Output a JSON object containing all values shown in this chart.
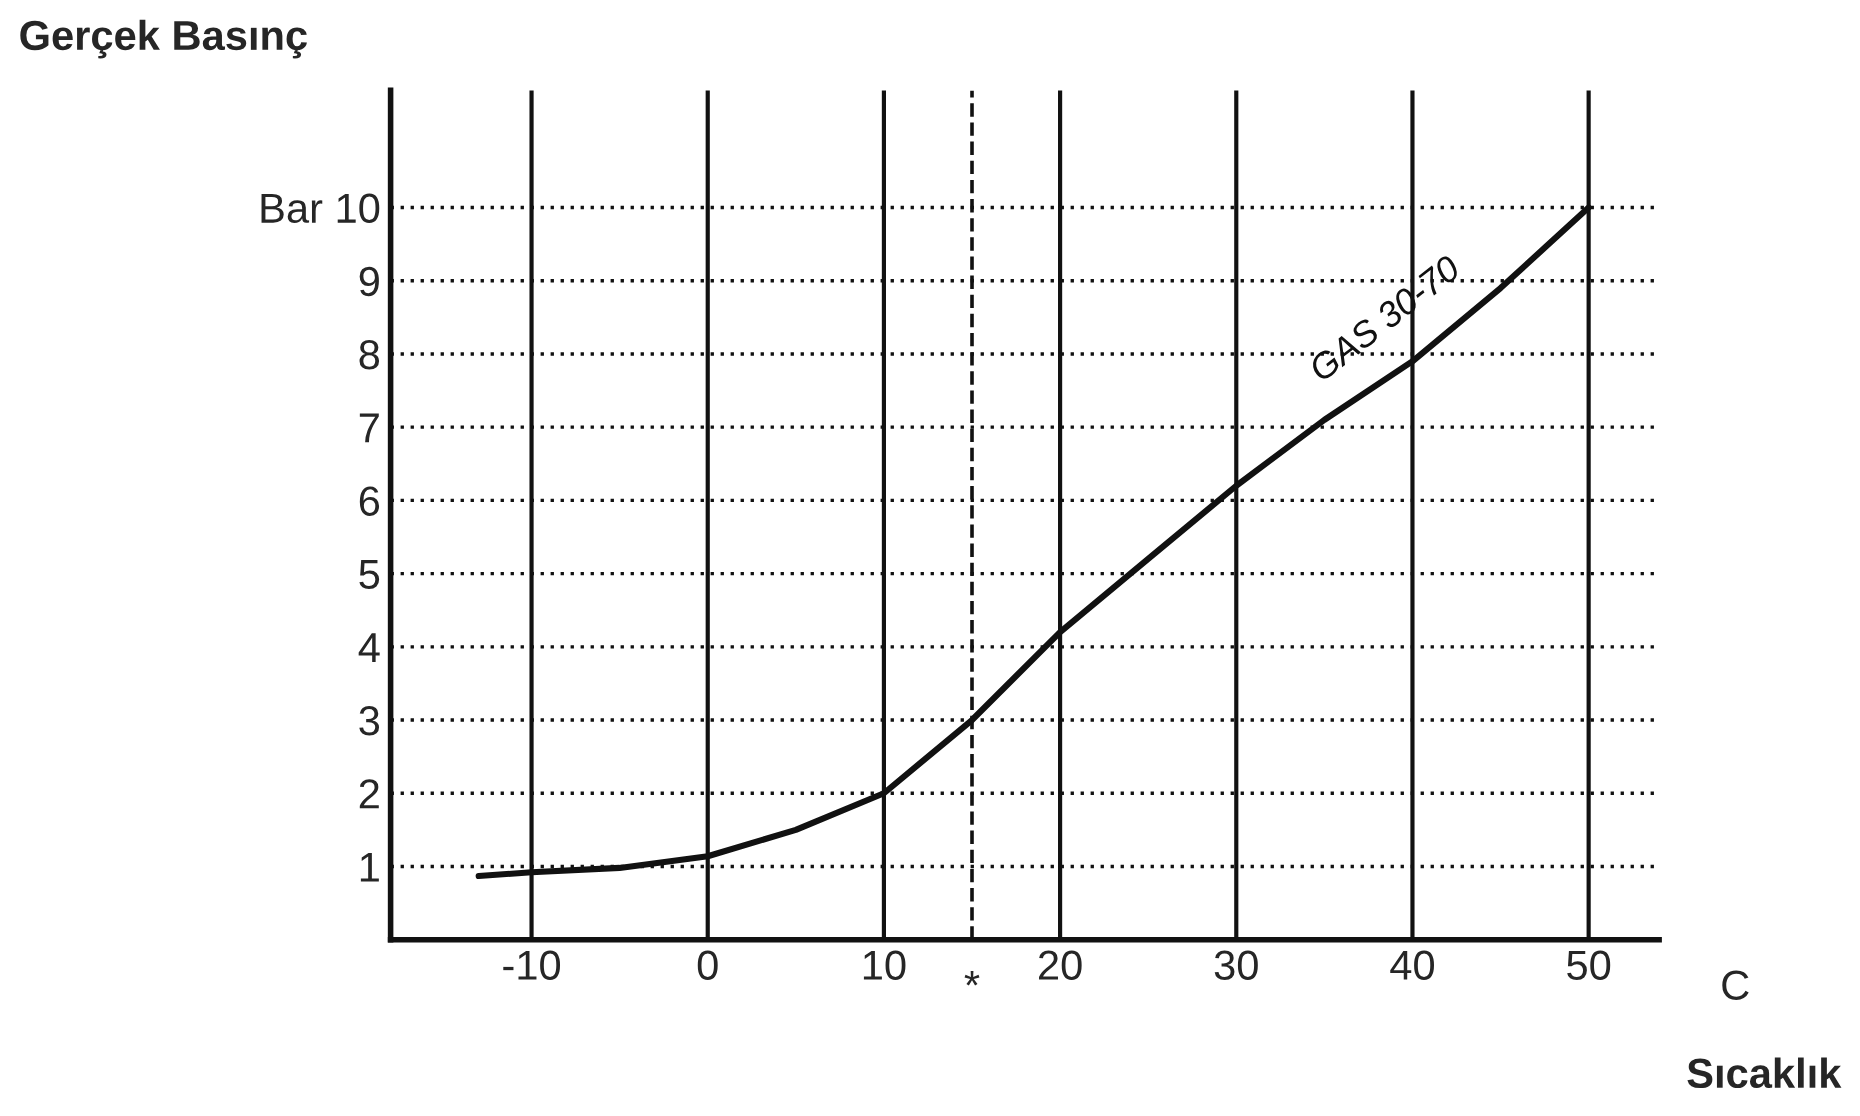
{
  "chart_data": {
    "type": "line",
    "xlabel": "Sıcaklık",
    "ylabel": "Gerçek Basınç",
    "x": [
      -13,
      -10,
      -5,
      0,
      5,
      10,
      15,
      20,
      25,
      30,
      35,
      40,
      45,
      50
    ],
    "series": [
      {
        "name": "GAS 30-70",
        "color": "#111111",
        "values": [
          0.87,
          0.92,
          0.98,
          1.14,
          1.5,
          2.0,
          3.0,
          4.2,
          5.2,
          6.2,
          7.1,
          7.9,
          8.9,
          10.0
        ]
      }
    ],
    "xlim": [
      -18,
      54
    ],
    "xticks": [
      -10,
      0,
      10,
      20,
      30,
      40,
      50
    ],
    "ylim": [
      0,
      11.6
    ],
    "yticks": [
      1,
      2,
      3,
      4,
      5,
      6,
      7,
      8,
      9,
      {
        "value": 10,
        "label": "Bar 10"
      }
    ],
    "ref_lines": [
      {
        "axis": "x",
        "value": 15,
        "label": "*",
        "line_style": "dashed"
      }
    ],
    "annotations": [
      "C"
    ],
    "grid": true,
    "marker": "none",
    "line_style": "solid"
  }
}
